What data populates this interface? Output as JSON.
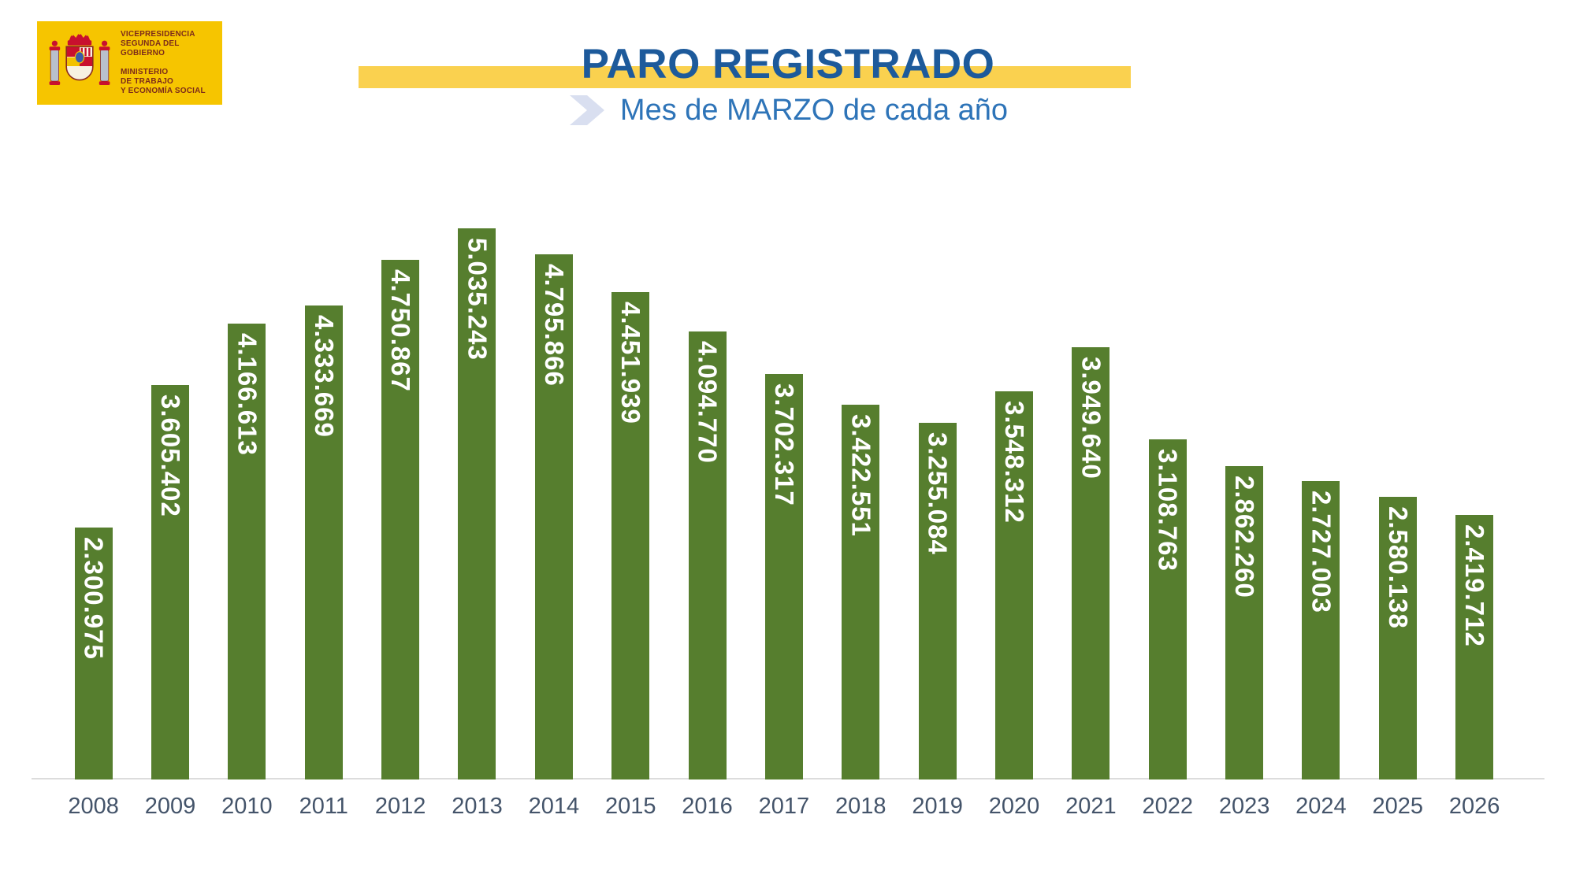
{
  "header": {
    "logo": {
      "lines": [
        "VICEPRESIDENCIA",
        "SEGUNDA DEL GOBIERNO",
        "MINISTERIO",
        "DE TRABAJO",
        "Y ECONOMÍA SOCIAL"
      ],
      "bg_color": "#F6C500",
      "text_color": "#7D2B1A"
    },
    "title": "PARO REGISTRADO",
    "subtitle": "Mes de MARZO de cada año",
    "title_color": "#1D5A9B",
    "subtitle_color": "#2E74B8",
    "band_color": "#FAD14F",
    "chevron_color": "#D9DFF0"
  },
  "chart_data": {
    "type": "bar",
    "title": "PARO REGISTRADO",
    "subtitle": "Mes de MARZO de cada año",
    "categories": [
      "2008",
      "2009",
      "2010",
      "2011",
      "2012",
      "2013",
      "2014",
      "2015",
      "2016",
      "2017",
      "2018",
      "2019",
      "2020",
      "2021",
      "2022",
      "2023",
      "2024",
      "2025",
      "2026"
    ],
    "values": [
      2300975,
      3605402,
      4166613,
      4333669,
      4750867,
      5035243,
      4795866,
      4451939,
      4094770,
      3702317,
      3422551,
      3255084,
      3548312,
      3949640,
      3108763,
      2862260,
      2727003,
      2580138,
      2419712
    ],
    "value_labels": [
      "2.300.975",
      "3.605.402",
      "4.166.613",
      "4.333.669",
      "4.750.867",
      "5.035.243",
      "4.795.866",
      "4.451.939",
      "4.094.770",
      "3.702.317",
      "3.422.551",
      "3.255.084",
      "3.548.312",
      "3.949.640",
      "3.108.763",
      "2.862.260",
      "2.727.003",
      "2.580.138",
      "2.419.712"
    ],
    "xlabel": "",
    "ylabel": "",
    "ylim": [
      0,
      5035243
    ],
    "grid": false,
    "legend": false,
    "bar_color": "#567E2E",
    "value_label_color": "#FFFFFF",
    "axis_label_color": "#44546A",
    "axis_line_color": "#DCDCDC"
  }
}
